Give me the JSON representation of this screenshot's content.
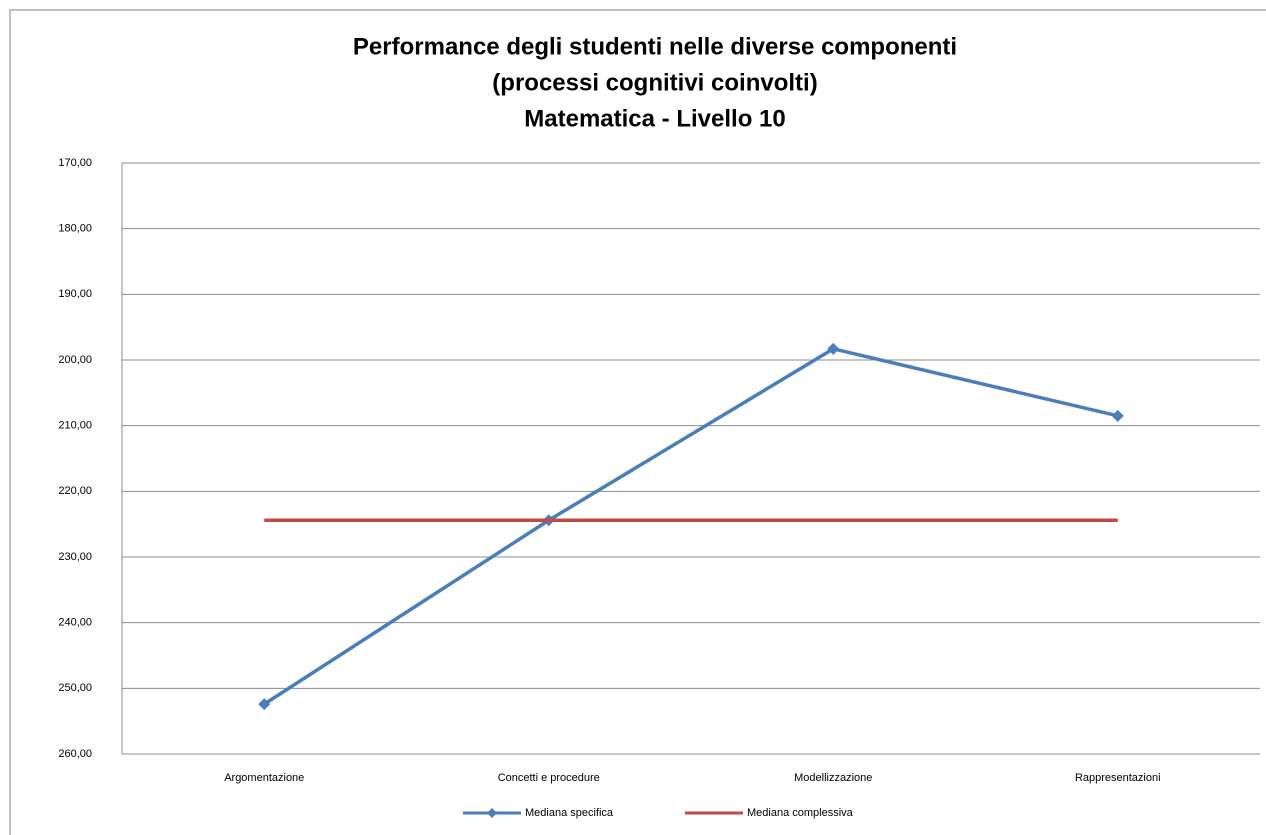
{
  "chart_data": {
    "type": "line",
    "title_lines": [
      "Performance degli studenti nelle diverse componenti",
      "(processi cognitivi coinvolti)",
      "Matematica - Livello 10"
    ],
    "categories": [
      "Argomentazione",
      "Concetti e procedure",
      "Modellizzazione",
      "Rappresentazioni"
    ],
    "series": [
      {
        "name": "Mediana specifica",
        "color": "#4a7ebb",
        "values": [
          252.4,
          224.4,
          198.3,
          208.5
        ],
        "markers": "diamond"
      },
      {
        "name": "Mediana complessiva",
        "color": "#be4b48",
        "values": [
          224.4,
          224.4,
          224.4,
          224.4
        ]
      }
    ],
    "ylim": [
      170,
      260
    ],
    "y_inverted": true,
    "yticks": [
      {
        "value": 170,
        "label": "170,00"
      },
      {
        "value": 180,
        "label": "180,00"
      },
      {
        "value": 190,
        "label": "190,00"
      },
      {
        "value": 200,
        "label": "200,00"
      },
      {
        "value": 210,
        "label": "210,00"
      },
      {
        "value": 220,
        "label": "220,00"
      },
      {
        "value": 230,
        "label": "230,00"
      },
      {
        "value": 240,
        "label": "240,00"
      },
      {
        "value": 250,
        "label": "250,00"
      },
      {
        "value": 260,
        "label": "260,00"
      }
    ],
    "grid": true,
    "legend": "bottom"
  }
}
